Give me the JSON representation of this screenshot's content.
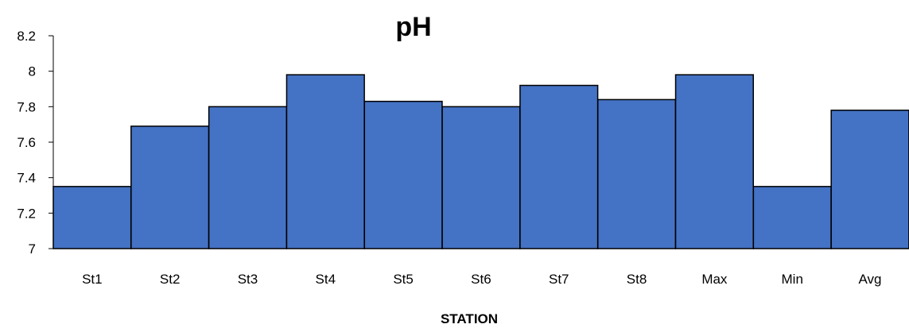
{
  "chart_data": {
    "type": "bar",
    "title": "pH",
    "xlabel": "STATION",
    "ylabel": "",
    "categories": [
      "St1",
      "St2",
      "St3",
      "St4",
      "St5",
      "St6",
      "St7",
      "St8",
      "Max",
      "Min",
      "Avg"
    ],
    "values": [
      7.35,
      7.69,
      7.8,
      7.98,
      7.83,
      7.8,
      7.92,
      7.84,
      7.98,
      7.35,
      7.78
    ],
    "ylim": [
      7,
      8.2
    ],
    "yticks": [
      "7",
      "7.2",
      "7.4",
      "7.6",
      "7.8",
      "8",
      "8.2"
    ],
    "grid": false,
    "legend": "none",
    "bar_color": "#4472C4",
    "bar_border_color": "#000000"
  }
}
